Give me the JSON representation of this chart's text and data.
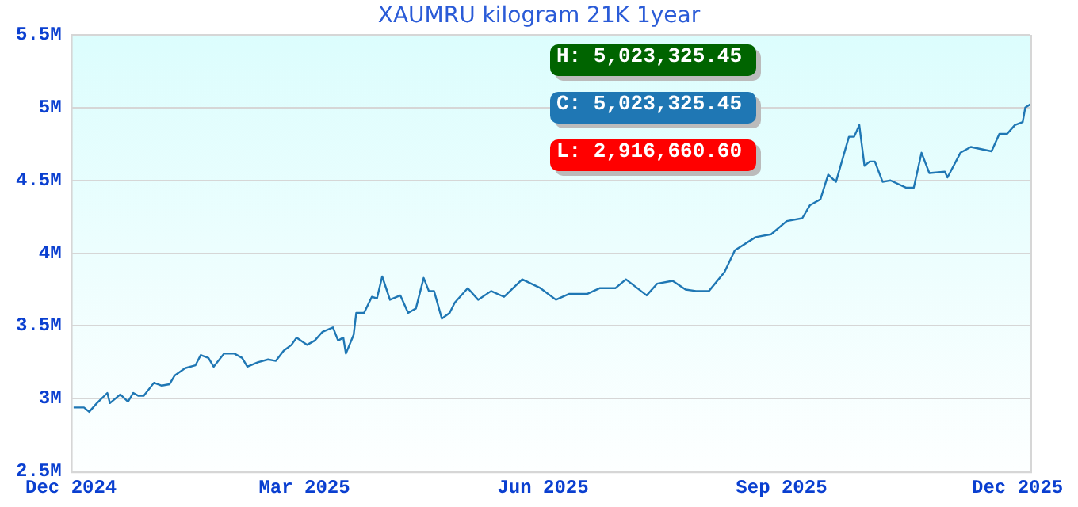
{
  "chart_data": {
    "type": "line",
    "title": "XAUMRU kilogram 21K 1year",
    "x": [
      "2024-12-02",
      "2024-12-06",
      "2024-12-08",
      "2024-12-11",
      "2024-12-15",
      "2024-12-16",
      "2024-12-20",
      "2024-12-23",
      "2024-12-25",
      "2024-12-27",
      "2024-12-29",
      "2025-01-02",
      "2025-01-05",
      "2025-01-08",
      "2025-01-10",
      "2025-01-14",
      "2025-01-18",
      "2025-01-20",
      "2025-01-23",
      "2025-01-25",
      "2025-01-29",
      "2025-02-02",
      "2025-02-05",
      "2025-02-07",
      "2025-02-11",
      "2025-02-15",
      "2025-02-18",
      "2025-02-21",
      "2025-02-24",
      "2025-02-26",
      "2025-03-02",
      "2025-03-05",
      "2025-03-08",
      "2025-03-12",
      "2025-03-14",
      "2025-03-16",
      "2025-03-17",
      "2025-03-20",
      "2025-03-21",
      "2025-03-24",
      "2025-03-27",
      "2025-03-29",
      "2025-03-31",
      "2025-04-03",
      "2025-04-07",
      "2025-04-10",
      "2025-04-13",
      "2025-04-16",
      "2025-04-18",
      "2025-04-20",
      "2025-04-23",
      "2025-04-26",
      "2025-04-28",
      "2025-05-03",
      "2025-05-07",
      "2025-05-12",
      "2025-05-17",
      "2025-05-24",
      "2025-05-31",
      "2025-06-06",
      "2025-06-11",
      "2025-06-18",
      "2025-06-23",
      "2025-06-29",
      "2025-07-03",
      "2025-07-11",
      "2025-07-15",
      "2025-07-21",
      "2025-07-26",
      "2025-07-30",
      "2025-08-04",
      "2025-08-10",
      "2025-08-14",
      "2025-08-22",
      "2025-08-28",
      "2025-09-03",
      "2025-09-09",
      "2025-09-12",
      "2025-09-16",
      "2025-09-19",
      "2025-09-22",
      "2025-09-27",
      "2025-09-29",
      "2025-10-01",
      "2025-10-03",
      "2025-10-05",
      "2025-10-07",
      "2025-10-10",
      "2025-10-13",
      "2025-10-19",
      "2025-10-22",
      "2025-10-25",
      "2025-10-28",
      "2025-11-03",
      "2025-11-04",
      "2025-11-09",
      "2025-11-13",
      "2025-11-21",
      "2025-11-24",
      "2025-11-27",
      "2025-11-30",
      "2025-12-03",
      "2025-12-04",
      "2025-12-06"
    ],
    "series": [
      {
        "color": "#1f77b4",
        "values": [
          2940000,
          2940000,
          2910000,
          2970000,
          3040000,
          2970000,
          3030000,
          2980000,
          3040000,
          3020000,
          3020000,
          3110000,
          3090000,
          3100000,
          3160000,
          3210000,
          3230000,
          3300000,
          3280000,
          3220000,
          3310000,
          3310000,
          3280000,
          3220000,
          3250000,
          3270000,
          3260000,
          3330000,
          3370000,
          3420000,
          3370000,
          3400000,
          3460000,
          3490000,
          3400000,
          3420000,
          3310000,
          3440000,
          3590000,
          3590000,
          3700000,
          3690000,
          3840000,
          3680000,
          3710000,
          3590000,
          3620000,
          3830000,
          3740000,
          3740000,
          3550000,
          3590000,
          3660000,
          3760000,
          3680000,
          3740000,
          3700000,
          3820000,
          3760000,
          3680000,
          3720000,
          3720000,
          3760000,
          3760000,
          3820000,
          3710000,
          3790000,
          3810000,
          3750000,
          3740000,
          3740000,
          3870000,
          4020000,
          4110000,
          4130000,
          4220000,
          4240000,
          4330000,
          4370000,
          4540000,
          4490000,
          4800000,
          4800000,
          4880000,
          4600000,
          4630000,
          4630000,
          4490000,
          4500000,
          4450000,
          4450000,
          4690000,
          4550000,
          4560000,
          4520000,
          4690000,
          4730000,
          4700000,
          4820000,
          4820000,
          4880000,
          4900000,
          5000000,
          5023325.45
        ]
      }
    ],
    "xlim": [
      "2024-12-01",
      "2025-12-06"
    ],
    "xticks": [
      {
        "value": "2024-12-01",
        "label": "Dec 2024"
      },
      {
        "value": "2025-03-01",
        "label": "Mar 2025"
      },
      {
        "value": "2025-06-01",
        "label": "Jun 2025"
      },
      {
        "value": "2025-09-01",
        "label": "Sep 2025"
      },
      {
        "value": "2025-12-01",
        "label": "Dec 2025"
      }
    ],
    "ylim": [
      2500000,
      5500000
    ],
    "yticks": [
      {
        "value": 2500000,
        "label": "2.5M"
      },
      {
        "value": 3000000,
        "label": "3M"
      },
      {
        "value": 3500000,
        "label": "3.5M"
      },
      {
        "value": 4000000,
        "label": "4M"
      },
      {
        "value": 4500000,
        "label": "4.5M"
      },
      {
        "value": 5000000,
        "label": "5M"
      },
      {
        "value": 5500000,
        "label": "5.5M"
      }
    ],
    "grid": "y",
    "legend": false,
    "marker": "none",
    "line_style": "solid",
    "annotations": [
      "H: 5,023,325.45",
      "C: 5,023,325.45",
      "L: 2,916,660.60"
    ]
  }
}
